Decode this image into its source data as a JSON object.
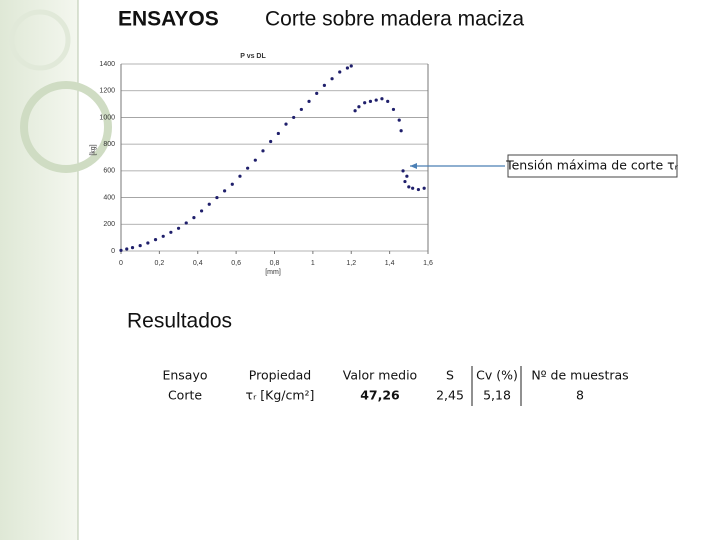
{
  "header": {
    "title": "ENSAYOS",
    "subtitle": "Corte sobre madera maciza"
  },
  "chart_data": {
    "type": "scatter",
    "title": "P vs DL",
    "x_label": "[mm]",
    "y_label": "[kg]",
    "color": "#1f1f6b",
    "grid": true,
    "x": [
      0,
      0.03,
      0.06,
      0.1,
      0.14,
      0.18,
      0.22,
      0.26,
      0.3,
      0.34,
      0.38,
      0.42,
      0.46,
      0.5,
      0.54,
      0.58,
      0.62,
      0.66,
      0.7,
      0.74,
      0.78,
      0.82,
      0.86,
      0.9,
      0.94,
      0.98,
      1.02,
      1.06,
      1.1,
      1.14,
      1.18,
      1.2,
      1.22,
      1.24,
      1.27,
      1.3,
      1.33,
      1.36,
      1.39,
      1.42,
      1.45,
      1.46,
      1.47,
      1.48,
      1.49,
      1.5,
      1.52,
      1.55,
      1.58
    ],
    "y": [
      5,
      15,
      25,
      40,
      60,
      85,
      110,
      140,
      170,
      210,
      250,
      300,
      350,
      400,
      450,
      500,
      560,
      620,
      680,
      750,
      820,
      880,
      950,
      1000,
      1060,
      1120,
      1180,
      1240,
      1290,
      1340,
      1370,
      1385,
      1050,
      1080,
      1110,
      1120,
      1130,
      1140,
      1120,
      1060,
      980,
      900,
      600,
      520,
      560,
      480,
      470,
      460,
      470
    ],
    "xlim": [
      0,
      1.6
    ],
    "ylim": [
      0,
      1400
    ],
    "xticks": [
      0,
      {
        "value": 0.2,
        "label": "0,2"
      },
      {
        "value": 0.4,
        "label": "0,4"
      },
      {
        "value": 0.6,
        "label": "0,6"
      },
      {
        "value": 0.8,
        "label": "0,8"
      },
      1,
      {
        "value": 1.2,
        "label": "1,2"
      },
      {
        "value": 1.4,
        "label": "1,4"
      },
      {
        "value": 1.6,
        "label": "1,6"
      }
    ],
    "yticks": [
      0,
      200,
      400,
      600,
      800,
      1000,
      1200,
      1400
    ],
    "annotation": "Tensión máxima de corte τᵣ"
  },
  "section_label": "Resultados",
  "table": {
    "header": [
      "Ensayo",
      "Propiedad",
      "Valor medio",
      "S",
      "Cv (%)",
      "Nº de muestras"
    ],
    "rows": [
      [
        "Corte",
        "τᵣ [Kg/cm²]",
        "47,26",
        "2,45",
        "5,18",
        "8"
      ]
    ]
  }
}
